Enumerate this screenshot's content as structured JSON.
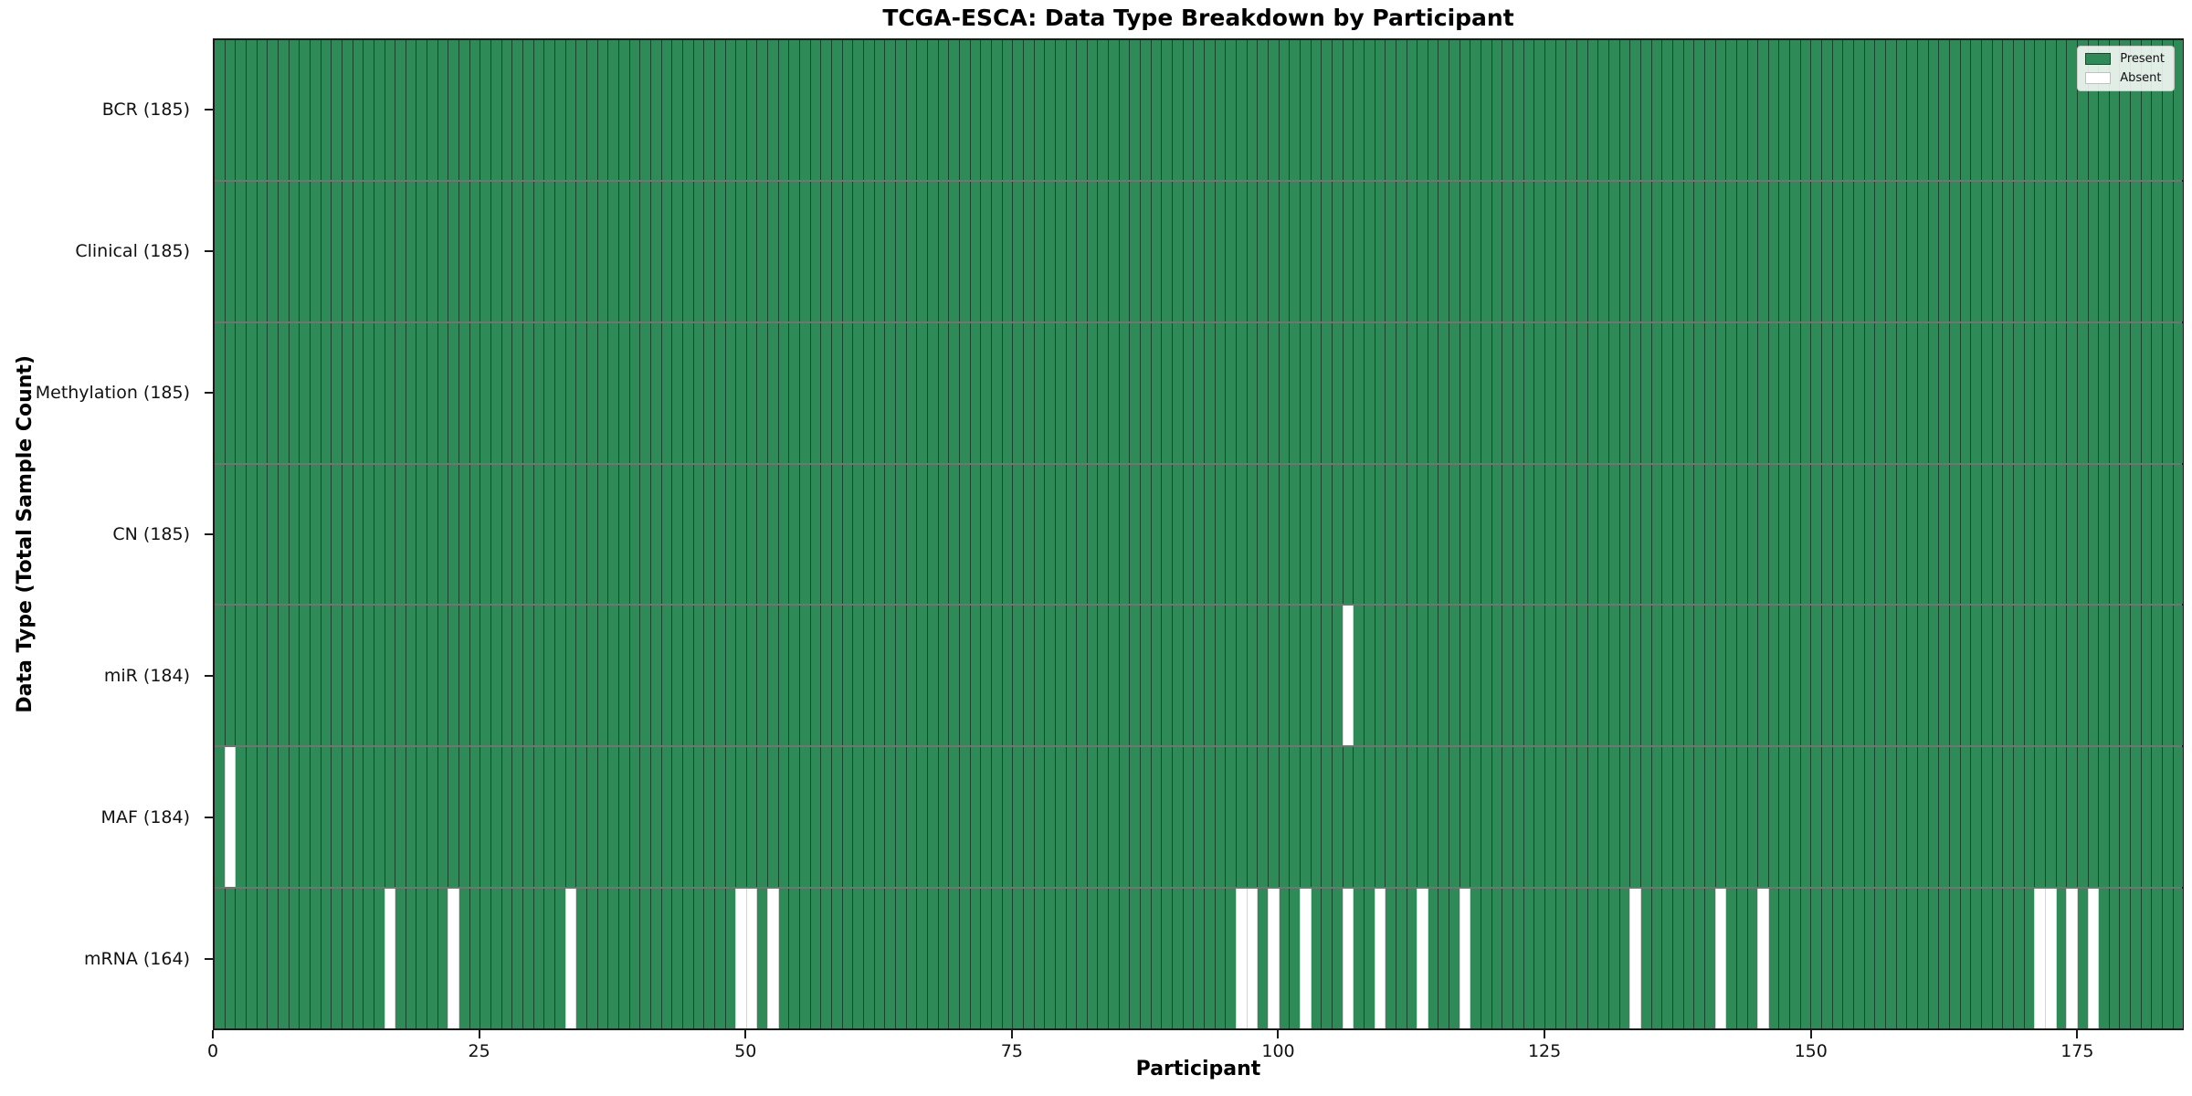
{
  "chart_data": {
    "type": "heatmap",
    "title": "TCGA-ESCA: Data Type Breakdown by Participant",
    "xlabel": "Participant",
    "ylabel": "Data Type (Total Sample Count)",
    "x_range": [
      0,
      185
    ],
    "x_ticks": [
      0,
      25,
      50,
      75,
      100,
      125,
      150,
      175
    ],
    "n_participants": 185,
    "grid": "cell-edges",
    "legend_position": "upper right",
    "legend": [
      {
        "label": "Present",
        "color": "#2e8b57"
      },
      {
        "label": "Absent",
        "color": "#ffffff"
      }
    ],
    "colors": {
      "present_fill": "#2e8b57",
      "absent_fill": "#ffffff",
      "cell_edge_dark": "rgba(0,0,0,0.5)",
      "cell_edge_light": "#d6d6d6",
      "row_divider": "rgba(0,0,0,0.55)",
      "spine": "#1a1a1a"
    },
    "rows": [
      {
        "name": "BCR",
        "total": 185,
        "label": "BCR (185)",
        "absent": []
      },
      {
        "name": "Clinical",
        "total": 185,
        "label": "Clinical (185)",
        "absent": []
      },
      {
        "name": "Methylation",
        "total": 185,
        "label": "Methylation (185)",
        "absent": []
      },
      {
        "name": "CN",
        "total": 185,
        "label": "CN (185)",
        "absent": []
      },
      {
        "name": "miR",
        "total": 184,
        "label": "miR (184)",
        "absent": [
          106
        ]
      },
      {
        "name": "MAF",
        "total": 184,
        "label": "MAF (184)",
        "absent": [
          1
        ]
      },
      {
        "name": "mRNA",
        "total": 164,
        "label": "mRNA (164)",
        "absent": [
          16,
          22,
          33,
          49,
          50,
          52,
          96,
          97,
          99,
          102,
          106,
          109,
          113,
          117,
          133,
          141,
          145,
          171,
          172,
          174,
          176
        ]
      }
    ]
  }
}
